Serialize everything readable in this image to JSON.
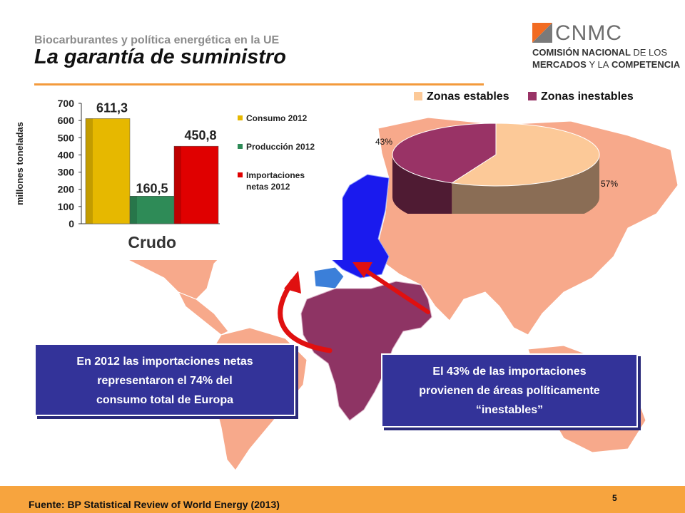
{
  "header": {
    "subtitle": "Biocarburantes y política energética en la UE",
    "title": "La garantía de suministro"
  },
  "logo": {
    "name": "CNMC",
    "line1_bold": "COMISIÓN NACIONAL",
    "line1_light": "DE LOS",
    "line2_bold": "MERCADOS",
    "line2_light": "Y LA",
    "line2_bold2": "COMPETENCIA",
    "colors": {
      "mark_orange": "#f26b21",
      "mark_grey": "#7a7a7a"
    }
  },
  "chart_data": [
    {
      "type": "bar",
      "categories": [
        "Consumo 2012",
        "Producción 2012",
        "Importaciones netas 2012"
      ],
      "values": [
        611.3,
        160.5,
        450.8
      ],
      "value_labels": [
        "611,3",
        "160,5",
        "450,8"
      ],
      "series_colors": [
        "#e6b800",
        "#2e8b57",
        "#e00000"
      ],
      "xlabel": "Crudo",
      "ylabel": "millones toneladas",
      "ylim": [
        0,
        700
      ],
      "yticks": [
        "0",
        "100",
        "200",
        "300",
        "400",
        "500",
        "600",
        "700"
      ],
      "legend": [
        {
          "lines": [
            "Consumo 2012"
          ]
        },
        {
          "lines": [
            "Producción 2012"
          ]
        },
        {
          "lines": [
            "Importaciones",
            "netas 2012"
          ]
        }
      ],
      "legend_position": "right",
      "grid": false
    },
    {
      "type": "pie",
      "labels": [
        "Zonas estables",
        "Zonas inestables"
      ],
      "values": [
        57,
        43
      ],
      "value_labels": [
        "57%",
        "43%"
      ],
      "colors": [
        "#fcc998",
        "#993366"
      ],
      "legend_position": "top"
    }
  ],
  "callouts": {
    "left": [
      "En 2012 las importaciones netas",
      "representaron el 74% del",
      "consumo total de Europa"
    ],
    "right": [
      "El 43% de las importaciones",
      "provienen de áreas políticamente",
      "“inestables”"
    ]
  },
  "map": {
    "colors": {
      "world": "#f7a98b",
      "eu": "#1a1aee",
      "spain": "#3b7fd9",
      "africa_mideast": "#8e3464",
      "arrow": "#e01010"
    }
  },
  "footer": {
    "source": "Fuente: BP Statistical Review of World Energy (2013)",
    "page": "5"
  }
}
